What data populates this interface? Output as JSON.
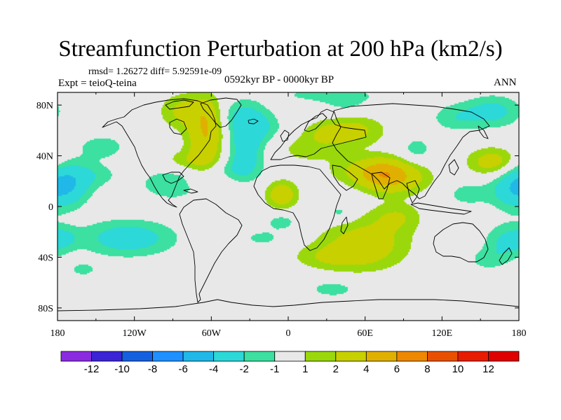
{
  "chart_data": {
    "type": "heatmap",
    "title": "Streamfunction Perturbation at 200 hPa (km2/s)",
    "stats_text": "rmsd= 1.26272 diff= 5.92591e-09",
    "experiment_text": "Expt = teioQ-teina",
    "period_text": "0592kyr BP - 0000kyr BP",
    "season_text": "ANN",
    "x_range": [
      -180,
      180
    ],
    "y_range": [
      -90,
      90
    ],
    "x_ticks": [
      {
        "value": -180,
        "label": "180"
      },
      {
        "value": -120,
        "label": "120W"
      },
      {
        "value": -60,
        "label": "60W"
      },
      {
        "value": 0,
        "label": "0"
      },
      {
        "value": 60,
        "label": "60E"
      },
      {
        "value": 120,
        "label": "120E"
      },
      {
        "value": 180,
        "label": "180"
      }
    ],
    "y_ticks": [
      {
        "value": 80,
        "label": "80N"
      },
      {
        "value": 40,
        "label": "40N"
      },
      {
        "value": 0,
        "label": "0"
      },
      {
        "value": -40,
        "label": "40S"
      },
      {
        "value": -80,
        "label": "80S"
      }
    ],
    "colorbar": {
      "levels": [
        -12,
        -10,
        -8,
        -6,
        -4,
        -2,
        -1,
        1,
        2,
        4,
        6,
        8,
        10,
        12
      ],
      "labels": [
        "-12",
        "-10",
        "-8",
        "-6",
        "-4",
        "-2",
        "-1",
        "1",
        "2",
        "4",
        "6",
        "8",
        "10",
        "12"
      ],
      "colors": [
        "#8a2be2",
        "#3a24d6",
        "#1560e0",
        "#1e90ff",
        "#20b8e8",
        "#2cd8d8",
        "#3ce0a0",
        "#e8e8e8",
        "#9ad80c",
        "#c8d000",
        "#e0b000",
        "#ee8800",
        "#e85000",
        "#e81c00",
        "#e00000"
      ]
    },
    "field_anomalies": [
      {
        "lon": -80,
        "lat": 75,
        "value": 2.5,
        "slon": 14,
        "slat": 10
      },
      {
        "lon": -62,
        "lat": 70,
        "value": 2.2,
        "slon": 9,
        "slat": 13
      },
      {
        "lon": -65,
        "lat": 50,
        "value": 3.0,
        "slon": 10,
        "slat": 13
      },
      {
        "lon": -75,
        "lat": 36,
        "value": 1.6,
        "slon": 18,
        "slat": 6
      },
      {
        "lon": -60,
        "lat": 20,
        "value": 1.2,
        "slon": 16,
        "slat": 6
      },
      {
        "lon": -36,
        "lat": 72,
        "value": -2.0,
        "slon": 14,
        "slat": 9
      },
      {
        "lon": -33,
        "lat": 48,
        "value": -3.0,
        "slon": 10,
        "slat": 15
      },
      {
        "lon": -42,
        "lat": 28,
        "value": -1.8,
        "slon": 14,
        "slat": 8
      },
      {
        "lon": -20,
        "lat": 62,
        "value": -1.5,
        "slon": 12,
        "slat": 8
      },
      {
        "lon": -145,
        "lat": 47,
        "value": -1.6,
        "slon": 14,
        "slat": 7
      },
      {
        "lon": -170,
        "lat": 18,
        "value": -3.0,
        "slon": 12,
        "slat": 12
      },
      {
        "lon": -150,
        "lat": 25,
        "value": -1.3,
        "slon": 14,
        "slat": 7
      },
      {
        "lon": -90,
        "lat": 18,
        "value": -2.0,
        "slon": 18,
        "slat": 9
      },
      {
        "lon": -125,
        "lat": -25,
        "value": -3.0,
        "slon": 26,
        "slat": 10
      },
      {
        "lon": -175,
        "lat": -25,
        "value": -1.5,
        "slon": 8,
        "slat": 6
      },
      {
        "lon": -5,
        "lat": 10,
        "value": 2.2,
        "slon": 8,
        "slat": 7
      },
      {
        "lon": -5,
        "lat": -12,
        "value": -1.6,
        "slon": 9,
        "slat": 5
      },
      {
        "lon": -20,
        "lat": -25,
        "value": -1.3,
        "slon": 12,
        "slat": 5
      },
      {
        "lon": -5,
        "lat": 8,
        "value": 1.2,
        "slon": 10,
        "slat": 9
      },
      {
        "lon": 15,
        "lat": 45,
        "value": 1.4,
        "slon": 18,
        "slat": 8
      },
      {
        "lon": 50,
        "lat": 60,
        "value": 2.5,
        "slon": 18,
        "slat": 9
      },
      {
        "lon": 28,
        "lat": 58,
        "value": 1.2,
        "slon": 12,
        "slat": 6
      },
      {
        "lon": 30,
        "lat": 88,
        "value": -1.5,
        "slon": 28,
        "slat": 4
      },
      {
        "lon": 45,
        "lat": 80,
        "value": -1.3,
        "slon": 14,
        "slat": 6
      },
      {
        "lon": 75,
        "lat": 25,
        "value": 4.5,
        "slon": 14,
        "slat": 9
      },
      {
        "lon": 55,
        "lat": 28,
        "value": 1.8,
        "slon": 18,
        "slat": 8
      },
      {
        "lon": 95,
        "lat": 22,
        "value": 1.8,
        "slon": 16,
        "slat": 9
      },
      {
        "lon": 100,
        "lat": 45,
        "value": -1.6,
        "slon": 9,
        "slat": 7
      },
      {
        "lon": 60,
        "lat": -30,
        "value": 3.0,
        "slon": 24,
        "slat": 14
      },
      {
        "lon": 30,
        "lat": -40,
        "value": 1.5,
        "slon": 20,
        "slat": 7
      },
      {
        "lon": 85,
        "lat": -8,
        "value": 1.8,
        "slon": 14,
        "slat": 8
      },
      {
        "lon": 40,
        "lat": -5,
        "value": -1.5,
        "slon": 8,
        "slat": 5
      },
      {
        "lon": 35,
        "lat": -65,
        "value": -1.6,
        "slon": 14,
        "slat": 5
      },
      {
        "lon": 160,
        "lat": 75,
        "value": -2.5,
        "slon": 16,
        "slat": 9
      },
      {
        "lon": 130,
        "lat": 70,
        "value": -1.6,
        "slon": 14,
        "slat": 8
      },
      {
        "lon": 160,
        "lat": 35,
        "value": 3.0,
        "slon": 14,
        "slat": 8
      },
      {
        "lon": 175,
        "lat": 15,
        "value": -3.0,
        "slon": 12,
        "slat": 12
      },
      {
        "lon": 140,
        "lat": 10,
        "value": -1.4,
        "slon": 14,
        "slat": 8
      },
      {
        "lon": 170,
        "lat": -28,
        "value": -2.2,
        "slon": 12,
        "slat": 10
      },
      {
        "lon": 155,
        "lat": -42,
        "value": -1.4,
        "slon": 10,
        "slat": 6
      },
      {
        "lon": -160,
        "lat": -50,
        "value": -1.2,
        "slon": 10,
        "slat": 5
      },
      {
        "lon": -45,
        "lat": -60,
        "value": -1.0,
        "slon": 8,
        "slat": 4
      }
    ]
  }
}
